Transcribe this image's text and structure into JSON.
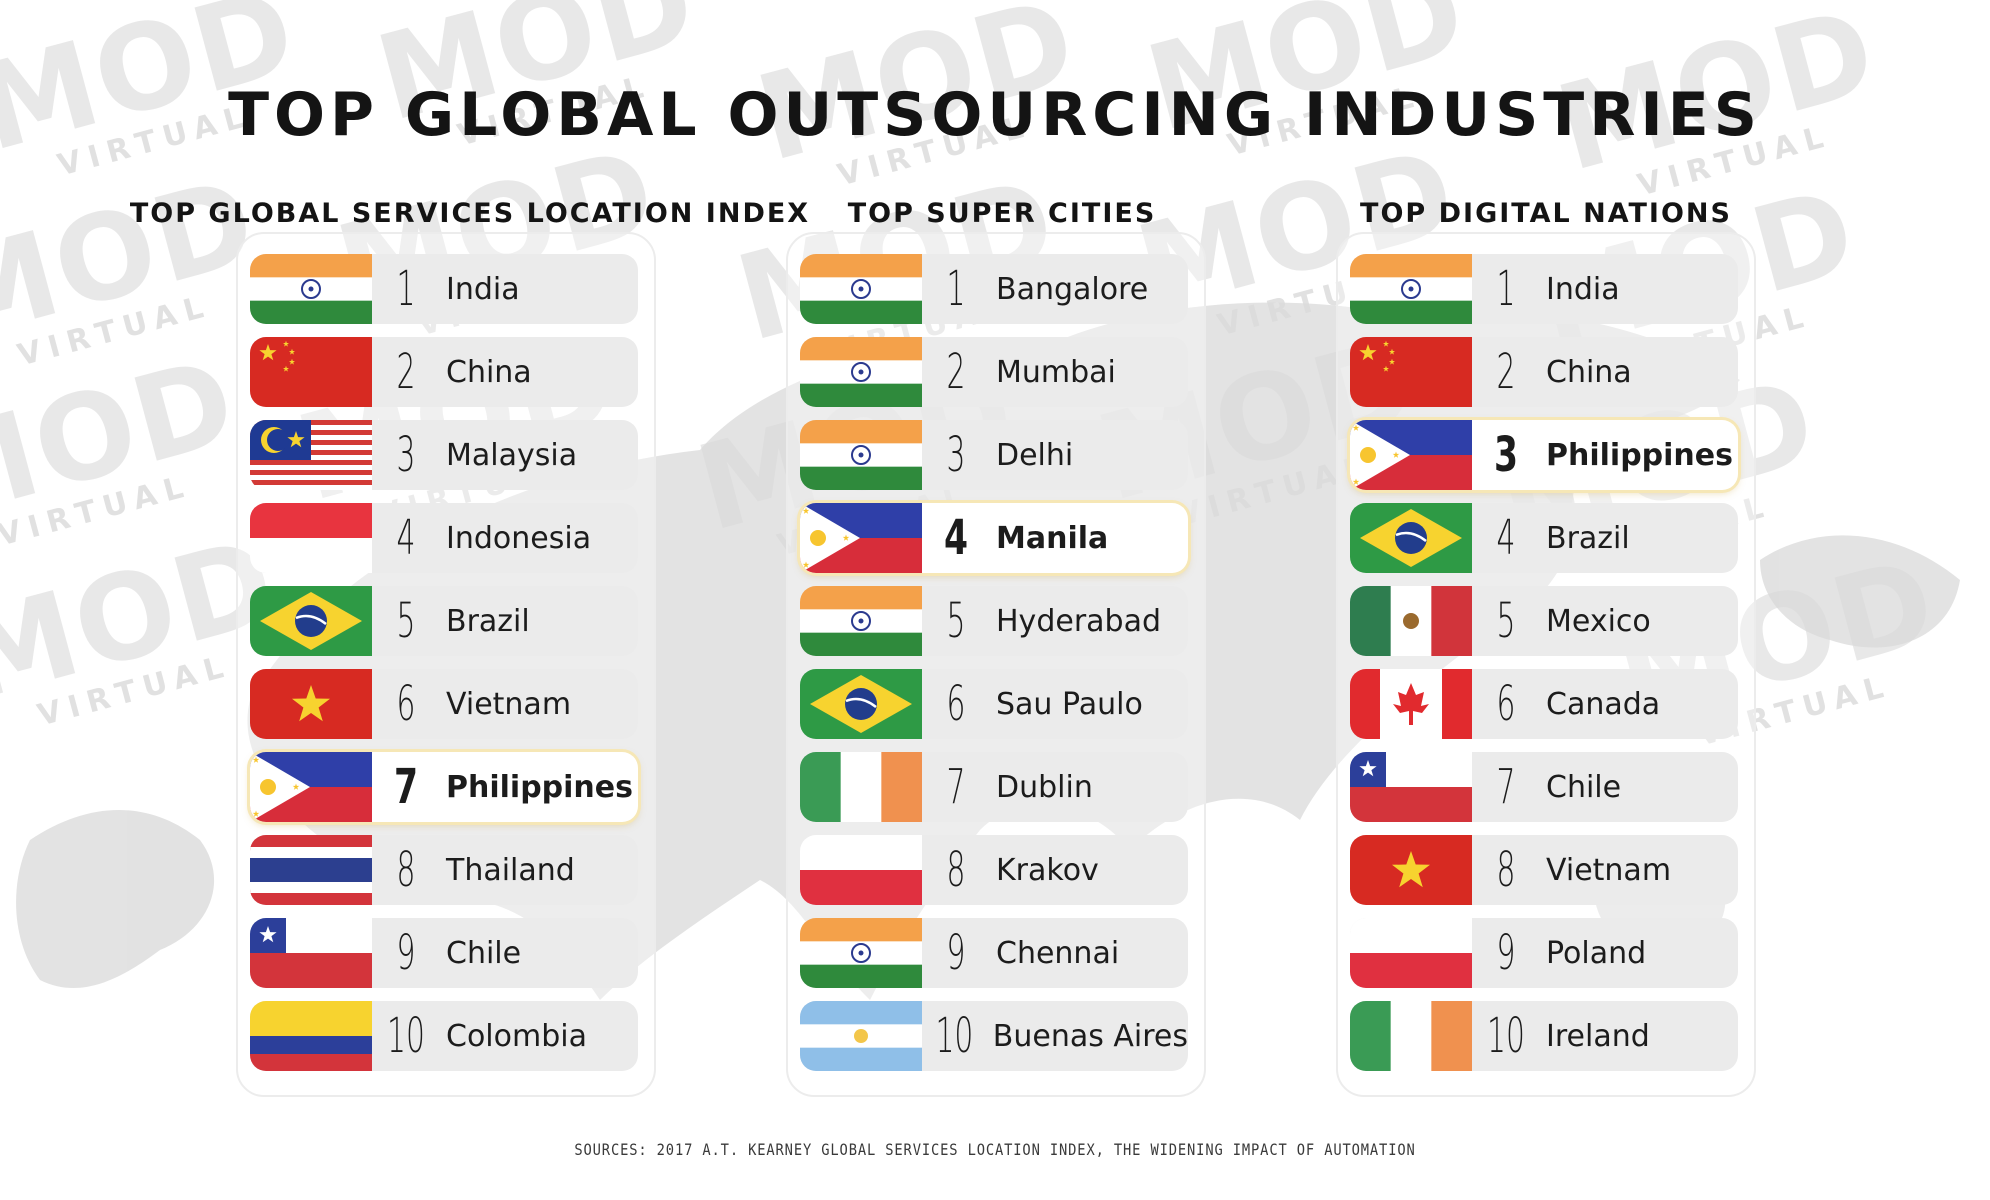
{
  "title": "TOP GLOBAL OUTSOURCING INDUSTRIES",
  "watermark": {
    "brand": "MOD",
    "tag": "VIRTUAL",
    "color": "#d6d6d6",
    "accent": "#f4a640"
  },
  "columns": [
    {
      "title": "TOP GLOBAL SERVICES LOCATION INDEX",
      "items": [
        {
          "rank": "1",
          "name": "India",
          "flag": "india-flag"
        },
        {
          "rank": "2",
          "name": "China",
          "flag": "china-flag"
        },
        {
          "rank": "3",
          "name": "Malaysia",
          "flag": "malaysia-flag"
        },
        {
          "rank": "4",
          "name": "Indonesia",
          "flag": "indonesia-flag"
        },
        {
          "rank": "5",
          "name": "Brazil",
          "flag": "brazil-flag"
        },
        {
          "rank": "6",
          "name": "Vietnam",
          "flag": "vietnam-flag"
        },
        {
          "rank": "7",
          "name": "Philippines",
          "flag": "philippines-flag",
          "highlight": true
        },
        {
          "rank": "8",
          "name": "Thailand",
          "flag": "thailand-flag"
        },
        {
          "rank": "9",
          "name": "Chile",
          "flag": "chile-flag"
        },
        {
          "rank": "10",
          "name": "Colombia",
          "flag": "colombia-flag"
        }
      ]
    },
    {
      "title": "TOP SUPER CITIES",
      "items": [
        {
          "rank": "1",
          "name": "Bangalore",
          "flag": "india-flag"
        },
        {
          "rank": "2",
          "name": "Mumbai",
          "flag": "india-flag"
        },
        {
          "rank": "3",
          "name": "Delhi",
          "flag": "india-flag"
        },
        {
          "rank": "4",
          "name": "Manila",
          "flag": "philippines-flag",
          "highlight": true
        },
        {
          "rank": "5",
          "name": "Hyderabad",
          "flag": "india-flag"
        },
        {
          "rank": "6",
          "name": "Sau Paulo",
          "flag": "brazil-flag"
        },
        {
          "rank": "7",
          "name": "Dublin",
          "flag": "ireland-flag"
        },
        {
          "rank": "8",
          "name": "Krakov",
          "flag": "poland-flag"
        },
        {
          "rank": "9",
          "name": "Chennai",
          "flag": "india-flag"
        },
        {
          "rank": "10",
          "name": "Buenas Aires",
          "flag": "argentina-flag"
        }
      ]
    },
    {
      "title": "TOP DIGITAL NATIONS",
      "items": [
        {
          "rank": "1",
          "name": "India",
          "flag": "india-flag"
        },
        {
          "rank": "2",
          "name": "China",
          "flag": "china-flag"
        },
        {
          "rank": "3",
          "name": "Philippines",
          "flag": "philippines-flag",
          "highlight": true
        },
        {
          "rank": "4",
          "name": "Brazil",
          "flag": "brazil-flag"
        },
        {
          "rank": "5",
          "name": "Mexico",
          "flag": "mexico-flag"
        },
        {
          "rank": "6",
          "name": "Canada",
          "flag": "canada-flag"
        },
        {
          "rank": "7",
          "name": "Chile",
          "flag": "chile-flag"
        },
        {
          "rank": "8",
          "name": "Vietnam",
          "flag": "vietnam-flag"
        },
        {
          "rank": "9",
          "name": "Poland",
          "flag": "poland-flag"
        },
        {
          "rank": "10",
          "name": "Ireland",
          "flag": "ireland-flag"
        }
      ]
    }
  ],
  "sources": "SOURCES: 2017 A.T. KEARNEY GLOBAL SERVICES LOCATION INDEX, THE WIDENING IMPACT OF AUTOMATION"
}
